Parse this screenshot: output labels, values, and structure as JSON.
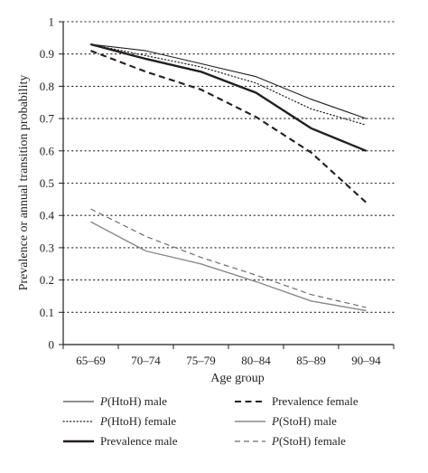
{
  "chart_data": {
    "type": "line",
    "xlabel": "Age group",
    "ylabel": "Prevalence or annual transition probability",
    "categories": [
      "65–69",
      "70–74",
      "75–79",
      "80–84",
      "85–89",
      "90–94"
    ],
    "ylim": [
      0,
      1
    ],
    "yticks": [
      "0",
      "0.1",
      "0.2",
      "0.3",
      "0.4",
      "0.5",
      "0.6",
      "0.7",
      "0.8",
      "0.9",
      "1"
    ],
    "grid": "horizontal dotted",
    "legend_position": "bottom",
    "series": [
      {
        "name": "P(HtoH) male",
        "name_prefix": "P",
        "name_suffix": "(HtoH) male",
        "values": [
          0.93,
          0.91,
          0.87,
          0.83,
          0.76,
          0.7
        ],
        "color": "#231f20",
        "style": "solid-thin"
      },
      {
        "name": "P(HtoH) female",
        "name_prefix": "P",
        "name_suffix": "(HtoH) female",
        "values": [
          0.93,
          0.895,
          0.86,
          0.81,
          0.73,
          0.68
        ],
        "color": "#231f20",
        "style": "dotted"
      },
      {
        "name": "Prevalence male",
        "name_prefix": "",
        "name_suffix": "Prevalence male",
        "values": [
          0.93,
          0.885,
          0.845,
          0.78,
          0.67,
          0.6
        ],
        "color": "#231f20",
        "style": "solid-thick"
      },
      {
        "name": "Prevalence female",
        "name_prefix": "",
        "name_suffix": "Prevalence female",
        "values": [
          0.91,
          0.845,
          0.79,
          0.705,
          0.595,
          0.44
        ],
        "color": "#231f20",
        "style": "dashed-thick"
      },
      {
        "name": "P(StoH) male",
        "name_prefix": "P",
        "name_suffix": "(StoH) male",
        "values": [
          0.38,
          0.29,
          0.25,
          0.195,
          0.135,
          0.105
        ],
        "color": "#8a8a8a",
        "style": "solid-gray"
      },
      {
        "name": "P(StoH) female",
        "name_prefix": "P",
        "name_suffix": "(StoH) female",
        "values": [
          0.42,
          0.335,
          0.27,
          0.215,
          0.155,
          0.115
        ],
        "color": "#6d6d6d",
        "style": "dashed-gray"
      }
    ]
  }
}
